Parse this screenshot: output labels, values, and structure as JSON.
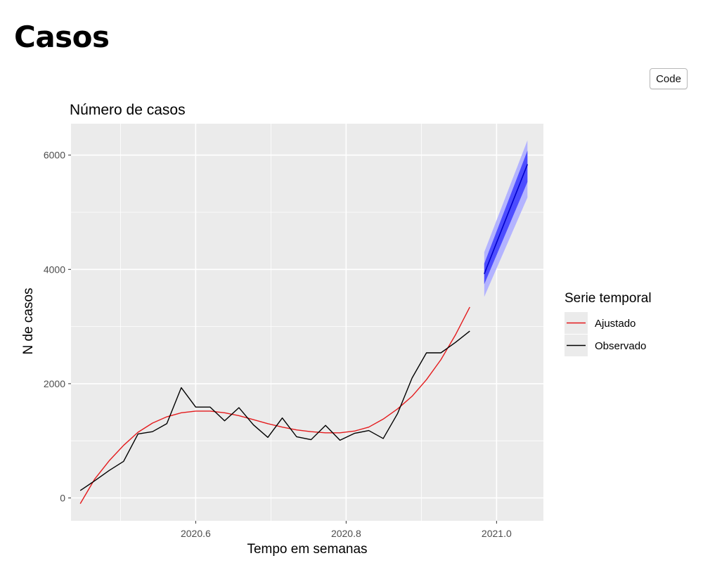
{
  "page": {
    "title": "Casos",
    "code_button": "Code"
  },
  "colors": {
    "panel": "#ebebeb",
    "grid": "#ffffff",
    "fitted": "#e41a1c",
    "observed": "#000000",
    "forecast_line": "#0000cc",
    "band80": "#4d4dff",
    "band95": "#b3b3ff"
  },
  "chart_data": {
    "type": "line",
    "title": "Número de casos",
    "xlabel": "Tempo em semanas",
    "ylabel": "N de casos",
    "xlim": [
      2020.4342,
      2021.0623
    ],
    "ylim": [
      -400,
      6550
    ],
    "x_ticks": [
      2020.6,
      2020.8,
      2021.0
    ],
    "x_tick_labels": [
      "2020.6",
      "2020.8",
      "2021.0"
    ],
    "y_ticks": [
      0,
      2000,
      4000,
      6000
    ],
    "y_tick_labels": [
      "0",
      "2000",
      "4000",
      "6000"
    ],
    "grid": true,
    "legend": {
      "title": "Serie temporal",
      "position": "right",
      "entries": [
        "Ajustado",
        "Observado"
      ]
    },
    "series": [
      {
        "name": "Ajustado",
        "x": [
          2020.4465,
          2020.4657,
          2020.4849,
          2020.5041,
          2020.5233,
          2020.5425,
          2020.5616,
          2020.5808,
          2020.6,
          2020.6192,
          2020.6384,
          2020.6575,
          2020.6767,
          2020.6959,
          2020.7151,
          2020.7342,
          2020.7534,
          2020.7726,
          2020.7918,
          2020.811,
          2020.8301,
          2020.8493,
          2020.8685,
          2020.8877,
          2020.9068,
          2020.926,
          2020.9452,
          2020.9644
        ],
        "values": [
          -100,
          330,
          650,
          920,
          1150,
          1310,
          1420,
          1490,
          1520,
          1520,
          1490,
          1440,
          1370,
          1300,
          1240,
          1190,
          1160,
          1140,
          1140,
          1170,
          1240,
          1380,
          1560,
          1780,
          2070,
          2420,
          2850,
          3340
        ]
      },
      {
        "name": "Observado",
        "x": [
          2020.4465,
          2020.4657,
          2020.4849,
          2020.5041,
          2020.5233,
          2020.5425,
          2020.5616,
          2020.5808,
          2020.6,
          2020.6192,
          2020.6384,
          2020.6575,
          2020.6767,
          2020.6959,
          2020.7151,
          2020.7342,
          2020.7534,
          2020.7726,
          2020.7918,
          2020.811,
          2020.8301,
          2020.8493,
          2020.8685,
          2020.8877,
          2020.9068,
          2020.926,
          2020.9452,
          2020.9644
        ],
        "values": [
          130,
          300,
          480,
          640,
          1120,
          1160,
          1300,
          1930,
          1590,
          1590,
          1350,
          1580,
          1280,
          1060,
          1400,
          1070,
          1020,
          1270,
          1010,
          1130,
          1180,
          1040,
          1480,
          2100,
          2540,
          2540,
          2720,
          2920
        ]
      }
    ],
    "forecast": {
      "x": [
        2020.9836,
        2021.0411
      ],
      "values": [
        3920,
        5840
      ],
      "lo80": [
        3740,
        5530
      ],
      "hi80": [
        4100,
        6080
      ],
      "lo95": [
        3520,
        5260
      ],
      "hi95": [
        4300,
        6260
      ]
    }
  }
}
